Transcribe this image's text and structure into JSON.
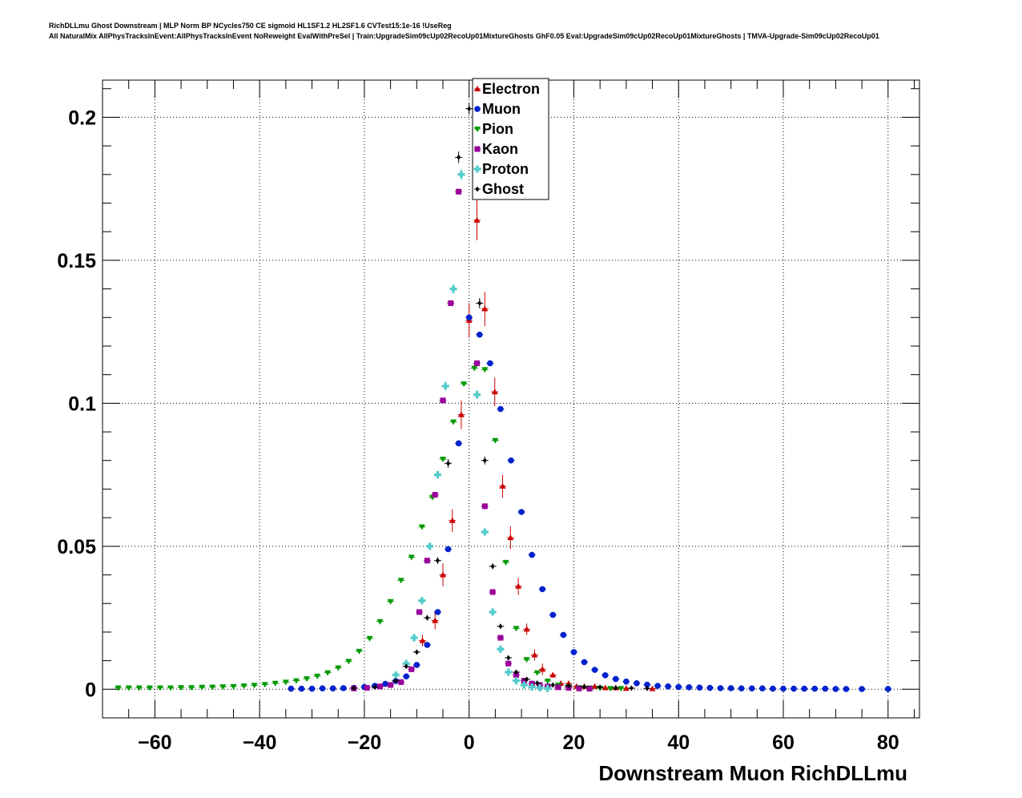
{
  "header": {
    "line1": "RichDLLmu Ghost Downstream | MLP Norm BP NCycles750 CE sigmoid HL1SF1.2 HL2SF1.6 CVTest15:1e-16 !UseReg",
    "line2": "All NaturalMix AllPhysTracksInEvent:AllPhysTracksInEvent NoReweight EvalWithPreSel | Train:UpgradeSim09cUp02RecoUp01MixtureGhosts GhF0.05 Eval:UpgradeSim09cUp02RecoUp01MixtureGhosts | TMVA-Upgrade-Sim09cUp02RecoUp01"
  },
  "chart_data": {
    "type": "scatter",
    "title": "",
    "xlabel": "Downstream Muon RichDLLmu",
    "ylabel": "",
    "xlim": [
      -70,
      86
    ],
    "ylim": [
      -0.01,
      0.213
    ],
    "xticks": [
      -60,
      -40,
      -20,
      0,
      20,
      40,
      60,
      80
    ],
    "xtick_labels": [
      "−60",
      "−40",
      "−20",
      "0",
      "20",
      "40",
      "60",
      "80"
    ],
    "yticks": [
      0,
      0.05,
      0.1,
      0.15,
      0.2
    ],
    "ytick_labels": [
      "0",
      "0.05",
      "0.1",
      "0.15",
      "0.2"
    ],
    "grid": true,
    "legend_position": "top-center",
    "series": [
      {
        "name": "Electron",
        "color": "#cc0000",
        "marker": "triangle-up",
        "x": [
          -8.9,
          -6.5,
          -5.0,
          -3.2,
          -1.5,
          0.0,
          1.5,
          3.0,
          4.9,
          6.4,
          7.9,
          9.4,
          11.0,
          12.5,
          14.0,
          16.0,
          17.5,
          19.0,
          20.5,
          22.0,
          24.0,
          26.0,
          28.0,
          30.0,
          35.0
        ],
        "y": [
          0.017,
          0.024,
          0.04,
          0.059,
          0.096,
          0.129,
          0.164,
          0.133,
          0.104,
          0.071,
          0.053,
          0.036,
          0.021,
          0.012,
          0.007,
          0.005,
          0.002,
          0.002,
          0.001,
          0.001,
          0.001,
          0.0005,
          0.0005,
          0.0003,
          0.0002
        ],
        "err": [
          0.002,
          0.003,
          0.004,
          0.004,
          0.005,
          0.006,
          0.007,
          0.006,
          0.005,
          0.004,
          0.004,
          0.003,
          0.002,
          0.002,
          0.002,
          0.001,
          0.001,
          0.001,
          0.0008,
          0.0008,
          0.0006,
          0.0005,
          0.0005,
          0.0004,
          0.0003
        ]
      },
      {
        "name": "Muon",
        "color": "#0022cc",
        "marker": "circle",
        "x": [
          -34,
          -32,
          -30,
          -28,
          -26,
          -24,
          -22,
          -20,
          -18,
          -16,
          -14,
          -12,
          -10,
          -8,
          -6,
          -4,
          -2,
          0,
          2,
          4,
          6,
          8,
          10,
          12,
          14,
          16,
          18,
          20,
          22,
          24,
          26,
          28,
          30,
          32,
          34,
          36,
          38,
          40,
          42,
          44,
          46,
          48,
          50,
          52,
          54,
          56,
          58,
          60,
          62,
          64,
          66,
          68,
          70,
          72,
          75,
          80
        ],
        "y": [
          0.0002,
          0.0002,
          0.0002,
          0.0003,
          0.0003,
          0.0004,
          0.0005,
          0.0008,
          0.0012,
          0.0019,
          0.0029,
          0.0045,
          0.0085,
          0.0155,
          0.027,
          0.049,
          0.086,
          0.13,
          0.124,
          0.114,
          0.098,
          0.08,
          0.062,
          0.047,
          0.035,
          0.026,
          0.019,
          0.013,
          0.0095,
          0.0068,
          0.0049,
          0.0036,
          0.0027,
          0.0021,
          0.0016,
          0.0012,
          0.001,
          0.0008,
          0.0007,
          0.0006,
          0.0005,
          0.0004,
          0.0004,
          0.0003,
          0.0003,
          0.0003,
          0.0002,
          0.0002,
          0.0002,
          0.0002,
          0.0002,
          0.0002,
          0.0001,
          0.0001,
          0.0001,
          0.0001
        ]
      },
      {
        "name": "Pion",
        "color": "#009900",
        "marker": "triangle-down",
        "x": [
          -67,
          -65,
          -63,
          -61,
          -59,
          -57,
          -55,
          -53,
          -51,
          -49,
          -47,
          -45,
          -43,
          -41,
          -39,
          -37,
          -35,
          -33,
          -31,
          -29,
          -27,
          -25,
          -23,
          -21,
          -19,
          -17,
          -15,
          -13,
          -11,
          -9,
          -7,
          -5,
          -3,
          -1,
          1,
          3,
          5,
          7,
          9,
          11,
          13,
          15,
          17,
          19,
          21,
          23,
          25,
          27,
          29
        ],
        "y": [
          0.0005,
          0.0005,
          0.0005,
          0.0005,
          0.0005,
          0.0005,
          0.0006,
          0.0006,
          0.0007,
          0.0008,
          0.0009,
          0.001,
          0.0012,
          0.0014,
          0.0017,
          0.0021,
          0.0025,
          0.003,
          0.0037,
          0.0046,
          0.0058,
          0.0075,
          0.0098,
          0.0133,
          0.0178,
          0.0237,
          0.0307,
          0.0381,
          0.0462,
          0.0568,
          0.0671,
          0.0805,
          0.0935,
          0.1068,
          0.1123,
          0.1118,
          0.087,
          0.0444,
          0.0213,
          0.0104,
          0.0058,
          0.0029,
          0.0015,
          0.0009,
          0.0006,
          0.0005,
          0.0004,
          0.0003,
          0.0003
        ]
      },
      {
        "name": "Kaon",
        "color": "#990099",
        "marker": "square",
        "x": [
          -22.0,
          -19.5,
          -17.0,
          -15.0,
          -13.0,
          -11.0,
          -9.5,
          -8.0,
          -6.5,
          -5.0,
          -3.5,
          -2.0,
          1.5,
          3.0,
          4.5,
          6.0,
          7.5,
          9.0,
          10.5,
          12.0,
          13.5,
          15.0,
          17.0,
          19.0,
          21.0,
          23.0
        ],
        "y": [
          0.0003,
          0.0005,
          0.001,
          0.0015,
          0.0025,
          0.007,
          0.027,
          0.045,
          0.068,
          0.101,
          0.135,
          0.174,
          0.114,
          0.064,
          0.034,
          0.018,
          0.009,
          0.005,
          0.003,
          0.002,
          0.0015,
          0.001,
          0.0007,
          0.0005,
          0.0003,
          0.0002
        ]
      },
      {
        "name": "Proton",
        "color": "#55cccc",
        "marker": "cross",
        "x": [
          -14.0,
          -12.0,
          -10.5,
          -9.0,
          -7.5,
          -6.0,
          -4.5,
          -3.0,
          -1.5,
          1.5,
          3.0,
          4.5,
          6.0,
          7.5,
          9.0,
          10.5,
          12.0,
          13.5,
          15.0
        ],
        "y": [
          0.005,
          0.009,
          0.018,
          0.031,
          0.05,
          0.075,
          0.106,
          0.14,
          0.18,
          0.103,
          0.055,
          0.027,
          0.014,
          0.006,
          0.003,
          0.0015,
          0.0008,
          0.0005,
          0.0003
        ],
        "err": [
          0.0005,
          0.0006,
          0.0008,
          0.001,
          0.0012,
          0.0014,
          0.0016,
          0.0018,
          0.002,
          0.0016,
          0.0012,
          0.0009,
          0.0006,
          0.0005,
          0.0003,
          0.0002,
          0.0002,
          0.0001,
          0.0001
        ]
      },
      {
        "name": "Ghost",
        "color": "#000000",
        "marker": "diamond",
        "x": [
          -22,
          -18,
          -14,
          -12,
          -10,
          -8,
          -6,
          -4,
          -2,
          0,
          2,
          3,
          4.5,
          6,
          7.5,
          9,
          11,
          13,
          16,
          19,
          22,
          25,
          28,
          31,
          34
        ],
        "y": [
          0.0004,
          0.0008,
          0.003,
          0.008,
          0.013,
          0.025,
          0.045,
          0.079,
          0.186,
          0.203,
          0.135,
          0.08,
          0.043,
          0.022,
          0.011,
          0.006,
          0.0035,
          0.0022,
          0.0015,
          0.0012,
          0.0009,
          0.0007,
          0.0005,
          0.0004,
          0.0003
        ],
        "err": [
          0.0002,
          0.0003,
          0.0005,
          0.0007,
          0.0008,
          0.001,
          0.0012,
          0.0015,
          0.002,
          0.002,
          0.0018,
          0.0014,
          0.001,
          0.0008,
          0.0006,
          0.0005,
          0.0004,
          0.0003,
          0.0003,
          0.0002,
          0.0002,
          0.0002,
          0.0002,
          0.0002,
          0.0002
        ]
      }
    ]
  }
}
